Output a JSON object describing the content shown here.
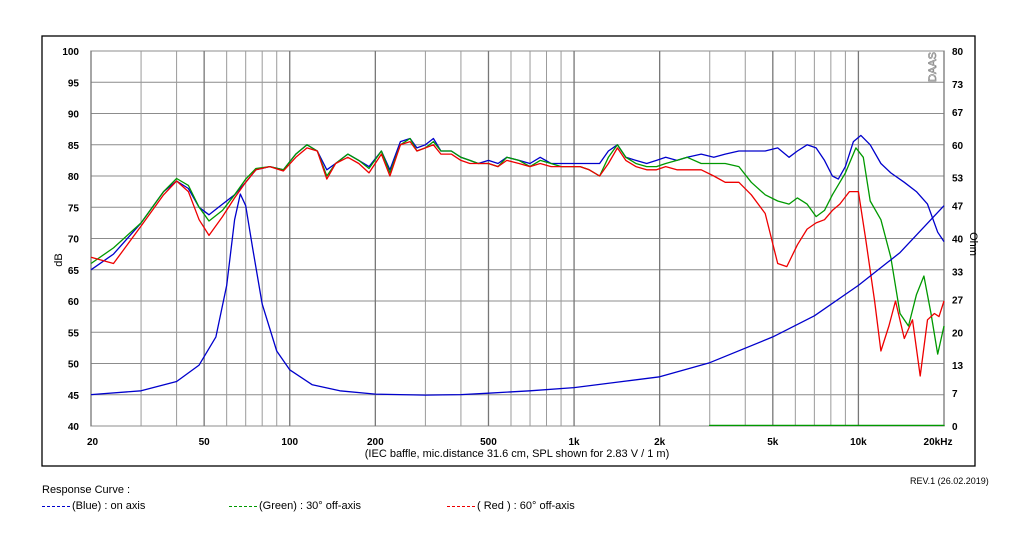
{
  "chart_data": {
    "type": "line",
    "watermark": "DAAS",
    "xlabel": "(IEC baffle, mic.distance 31.6 cm, SPL shown for 2.83 V / 1 m)",
    "ylabel": "dB",
    "y2label": "Ohm",
    "xscale": "log",
    "xlim": [
      20,
      20000
    ],
    "ylim": [
      40,
      100
    ],
    "y2lim": [
      0,
      80
    ],
    "x_ticks": [
      {
        "v": 20,
        "label": "20"
      },
      {
        "v": 50,
        "label": "50"
      },
      {
        "v": 100,
        "label": "100"
      },
      {
        "v": 200,
        "label": "200"
      },
      {
        "v": 500,
        "label": "500"
      },
      {
        "v": 1000,
        "label": "1k"
      },
      {
        "v": 2000,
        "label": "2k"
      },
      {
        "v": 5000,
        "label": "5k"
      },
      {
        "v": 10000,
        "label": "10k"
      },
      {
        "v": 20000,
        "label": "20kHz"
      }
    ],
    "y_ticks": [
      {
        "v": 40,
        "label": "40"
      },
      {
        "v": 45,
        "label": "45"
      },
      {
        "v": 50,
        "label": "50"
      },
      {
        "v": 55,
        "label": "55"
      },
      {
        "v": 60,
        "label": "60"
      },
      {
        "v": 65,
        "label": "65"
      },
      {
        "v": 70,
        "label": "70"
      },
      {
        "v": 75,
        "label": "75"
      },
      {
        "v": 80,
        "label": "80"
      },
      {
        "v": 85,
        "label": "85"
      },
      {
        "v": 90,
        "label": "90"
      },
      {
        "v": 95,
        "label": "95"
      },
      {
        "v": 100,
        "label": "100"
      }
    ],
    "y2_ticks": [
      {
        "v": 0,
        "label": "0"
      },
      {
        "v": 7,
        "label": "7"
      },
      {
        "v": 13,
        "label": "13"
      },
      {
        "v": 20,
        "label": "20"
      },
      {
        "v": 27,
        "label": "27"
      },
      {
        "v": 33,
        "label": "33"
      },
      {
        "v": 40,
        "label": "40"
      },
      {
        "v": 47,
        "label": "47"
      },
      {
        "v": 53,
        "label": "53"
      },
      {
        "v": 60,
        "label": "60"
      },
      {
        "v": 67,
        "label": "67"
      },
      {
        "v": 73,
        "label": "73"
      },
      {
        "v": 80,
        "label": "80"
      }
    ],
    "grid": true,
    "series": [
      {
        "name": "on axis",
        "color": "#0000cc",
        "axis": "left",
        "points": [
          [
            20,
            65
          ],
          [
            24,
            67.5
          ],
          [
            30,
            72.5
          ],
          [
            36,
            77.5
          ],
          [
            40,
            79.2
          ],
          [
            44,
            78
          ],
          [
            48,
            75
          ],
          [
            52,
            73.8
          ],
          [
            58,
            75.5
          ],
          [
            64,
            77
          ],
          [
            70,
            79
          ],
          [
            76,
            81
          ],
          [
            85,
            81.5
          ],
          [
            95,
            81
          ],
          [
            105,
            83.5
          ],
          [
            115,
            85
          ],
          [
            125,
            84
          ],
          [
            135,
            81
          ],
          [
            145,
            82
          ],
          [
            160,
            83.5
          ],
          [
            175,
            82.5
          ],
          [
            190,
            81.5
          ],
          [
            210,
            84
          ],
          [
            225,
            81
          ],
          [
            245,
            85.5
          ],
          [
            265,
            86
          ],
          [
            280,
            84.5
          ],
          [
            300,
            85
          ],
          [
            320,
            86
          ],
          [
            340,
            84
          ],
          [
            370,
            84
          ],
          [
            400,
            83
          ],
          [
            430,
            82.5
          ],
          [
            460,
            82
          ],
          [
            500,
            82.5
          ],
          [
            540,
            82
          ],
          [
            580,
            83
          ],
          [
            640,
            82.5
          ],
          [
            700,
            82
          ],
          [
            760,
            83
          ],
          [
            830,
            82
          ],
          [
            900,
            82
          ],
          [
            970,
            82
          ],
          [
            1050,
            82
          ],
          [
            1130,
            82
          ],
          [
            1230,
            82
          ],
          [
            1320,
            84
          ],
          [
            1420,
            85
          ],
          [
            1520,
            83
          ],
          [
            1650,
            82.5
          ],
          [
            1800,
            82
          ],
          [
            1950,
            82.5
          ],
          [
            2100,
            83
          ],
          [
            2300,
            82.5
          ],
          [
            2500,
            83
          ],
          [
            2800,
            83.5
          ],
          [
            3100,
            83
          ],
          [
            3400,
            83.5
          ],
          [
            3800,
            84
          ],
          [
            4200,
            84
          ],
          [
            4700,
            84
          ],
          [
            5200,
            84.5
          ],
          [
            5700,
            83
          ],
          [
            6100,
            84
          ],
          [
            6600,
            85
          ],
          [
            7100,
            84.5
          ],
          [
            7600,
            82.5
          ],
          [
            8100,
            80
          ],
          [
            8500,
            79.5
          ],
          [
            9000,
            81.5
          ],
          [
            9600,
            85.5
          ],
          [
            10200,
            86.5
          ],
          [
            11000,
            85
          ],
          [
            12000,
            82
          ],
          [
            13000,
            80.5
          ],
          [
            14500,
            79
          ],
          [
            16000,
            77.5
          ],
          [
            17500,
            75.5
          ],
          [
            19000,
            71
          ],
          [
            20000,
            69.5
          ]
        ]
      },
      {
        "name": "30° off-axis",
        "color": "#009900",
        "axis": "left",
        "points": [
          [
            20,
            66
          ],
          [
            24,
            68.5
          ],
          [
            30,
            72.5
          ],
          [
            36,
            77.5
          ],
          [
            40,
            79.6
          ],
          [
            44,
            78.5
          ],
          [
            48,
            75
          ],
          [
            52,
            72.8
          ],
          [
            58,
            74.5
          ],
          [
            64,
            77
          ],
          [
            70,
            79.5
          ],
          [
            76,
            81.2
          ],
          [
            85,
            81.5
          ],
          [
            95,
            81
          ],
          [
            105,
            83.5
          ],
          [
            115,
            85
          ],
          [
            125,
            84
          ],
          [
            135,
            80
          ],
          [
            145,
            82
          ],
          [
            160,
            83.5
          ],
          [
            175,
            82.5
          ],
          [
            190,
            81.2
          ],
          [
            210,
            84
          ],
          [
            225,
            80.5
          ],
          [
            245,
            85
          ],
          [
            265,
            86
          ],
          [
            280,
            84
          ],
          [
            300,
            84.5
          ],
          [
            320,
            85.5
          ],
          [
            340,
            84
          ],
          [
            370,
            84
          ],
          [
            400,
            83
          ],
          [
            430,
            82.5
          ],
          [
            460,
            82
          ],
          [
            500,
            82
          ],
          [
            540,
            81.5
          ],
          [
            580,
            83
          ],
          [
            640,
            82.5
          ],
          [
            700,
            81.5
          ],
          [
            760,
            82.5
          ],
          [
            830,
            82
          ],
          [
            900,
            81.5
          ],
          [
            970,
            81.5
          ],
          [
            1050,
            81.5
          ],
          [
            1130,
            81
          ],
          [
            1230,
            80
          ],
          [
            1320,
            83
          ],
          [
            1420,
            85
          ],
          [
            1520,
            83
          ],
          [
            1650,
            82
          ],
          [
            1800,
            81.5
          ],
          [
            1950,
            81.5
          ],
          [
            2100,
            82
          ],
          [
            2300,
            82.5
          ],
          [
            2500,
            83
          ],
          [
            2800,
            82
          ],
          [
            3100,
            82
          ],
          [
            3400,
            82
          ],
          [
            3800,
            81.5
          ],
          [
            4200,
            79
          ],
          [
            4700,
            77
          ],
          [
            5200,
            76
          ],
          [
            5700,
            75.5
          ],
          [
            6100,
            76.5
          ],
          [
            6600,
            75.5
          ],
          [
            7100,
            73.5
          ],
          [
            7600,
            74.5
          ],
          [
            8100,
            77
          ],
          [
            9000,
            80.5
          ],
          [
            9800,
            84.5
          ],
          [
            10400,
            83
          ],
          [
            11000,
            76
          ],
          [
            12000,
            73
          ],
          [
            13000,
            67
          ],
          [
            14000,
            58
          ],
          [
            15000,
            56
          ],
          [
            16000,
            61
          ],
          [
            17000,
            64
          ],
          [
            18000,
            58
          ],
          [
            19000,
            51.5
          ],
          [
            20000,
            56
          ]
        ]
      },
      {
        "name": "60° off-axis",
        "color": "#ee0000",
        "axis": "left",
        "points": [
          [
            20,
            67
          ],
          [
            24,
            66
          ],
          [
            30,
            72
          ],
          [
            36,
            77
          ],
          [
            40,
            79.2
          ],
          [
            44,
            77.5
          ],
          [
            48,
            73
          ],
          [
            52,
            70.5
          ],
          [
            58,
            73.5
          ],
          [
            64,
            76.5
          ],
          [
            70,
            79
          ],
          [
            76,
            81
          ],
          [
            85,
            81.5
          ],
          [
            95,
            80.8
          ],
          [
            105,
            83
          ],
          [
            115,
            84.5
          ],
          [
            125,
            84
          ],
          [
            135,
            79.5
          ],
          [
            145,
            82
          ],
          [
            160,
            83
          ],
          [
            175,
            82
          ],
          [
            190,
            80.5
          ],
          [
            210,
            83.5
          ],
          [
            225,
            80
          ],
          [
            245,
            85
          ],
          [
            265,
            85.5
          ],
          [
            280,
            84
          ],
          [
            300,
            84.5
          ],
          [
            320,
            85
          ],
          [
            340,
            83.5
          ],
          [
            370,
            83.5
          ],
          [
            400,
            82.5
          ],
          [
            430,
            82
          ],
          [
            460,
            82
          ],
          [
            500,
            82
          ],
          [
            540,
            81.5
          ],
          [
            580,
            82.5
          ],
          [
            640,
            82
          ],
          [
            700,
            81.5
          ],
          [
            760,
            82
          ],
          [
            830,
            81.5
          ],
          [
            900,
            81.5
          ],
          [
            970,
            81.5
          ],
          [
            1050,
            81.5
          ],
          [
            1130,
            81
          ],
          [
            1230,
            80
          ],
          [
            1320,
            82
          ],
          [
            1420,
            84.5
          ],
          [
            1520,
            82.5
          ],
          [
            1650,
            81.5
          ],
          [
            1800,
            81
          ],
          [
            1950,
            81
          ],
          [
            2100,
            81.5
          ],
          [
            2300,
            81
          ],
          [
            2500,
            81
          ],
          [
            2800,
            81
          ],
          [
            3100,
            80
          ],
          [
            3400,
            79
          ],
          [
            3800,
            79
          ],
          [
            4200,
            77
          ],
          [
            4700,
            74
          ],
          [
            5200,
            66
          ],
          [
            5600,
            65.5
          ],
          [
            6100,
            69
          ],
          [
            6600,
            71.5
          ],
          [
            7100,
            72.5
          ],
          [
            7600,
            73
          ],
          [
            8100,
            74.5
          ],
          [
            8600,
            75.5
          ],
          [
            9300,
            77.5
          ],
          [
            10000,
            77.5
          ],
          [
            10600,
            70
          ],
          [
            11400,
            60
          ],
          [
            12000,
            52
          ],
          [
            12800,
            56
          ],
          [
            13500,
            60
          ],
          [
            14500,
            54
          ],
          [
            15500,
            57
          ],
          [
            16500,
            48
          ],
          [
            17500,
            57
          ],
          [
            18500,
            58
          ],
          [
            19200,
            57.5
          ],
          [
            20000,
            60
          ]
        ]
      },
      {
        "name": "impedance",
        "color": "#0000cc",
        "axis": "right",
        "points": [
          [
            20,
            6.7
          ],
          [
            30,
            7.5
          ],
          [
            40,
            9.5
          ],
          [
            48,
            13
          ],
          [
            55,
            19
          ],
          [
            60,
            30
          ],
          [
            64,
            44
          ],
          [
            67,
            49.5
          ],
          [
            70,
            47
          ],
          [
            74,
            38
          ],
          [
            80,
            26
          ],
          [
            90,
            16
          ],
          [
            100,
            12
          ],
          [
            120,
            8.8
          ],
          [
            150,
            7.5
          ],
          [
            200,
            6.8
          ],
          [
            300,
            6.6
          ],
          [
            400,
            6.7
          ],
          [
            500,
            7
          ],
          [
            700,
            7.5
          ],
          [
            1000,
            8.2
          ],
          [
            1400,
            9.3
          ],
          [
            2000,
            10.5
          ],
          [
            3000,
            13.5
          ],
          [
            5000,
            19
          ],
          [
            7000,
            23.5
          ],
          [
            10000,
            30
          ],
          [
            14000,
            37
          ],
          [
            20000,
            47
          ]
        ]
      },
      {
        "name": "",
        "color": "#009900",
        "axis": "right",
        "points": [
          [
            3000,
            0
          ],
          [
            3000,
            0.12
          ],
          [
            20000,
            0.12
          ],
          [
            20000,
            0
          ]
        ]
      }
    ]
  },
  "legend": {
    "title": "Response Curve :",
    "items": [
      {
        "label": "(Blue)  : on axis",
        "color": "#0000cc"
      },
      {
        "label": "(Green) : 30° off-axis",
        "color": "#009900"
      },
      {
        "label": "( Red ) : 60° off-axis",
        "color": "#ee0000"
      }
    ]
  },
  "revision": "REV.1 (26.02.2019)"
}
